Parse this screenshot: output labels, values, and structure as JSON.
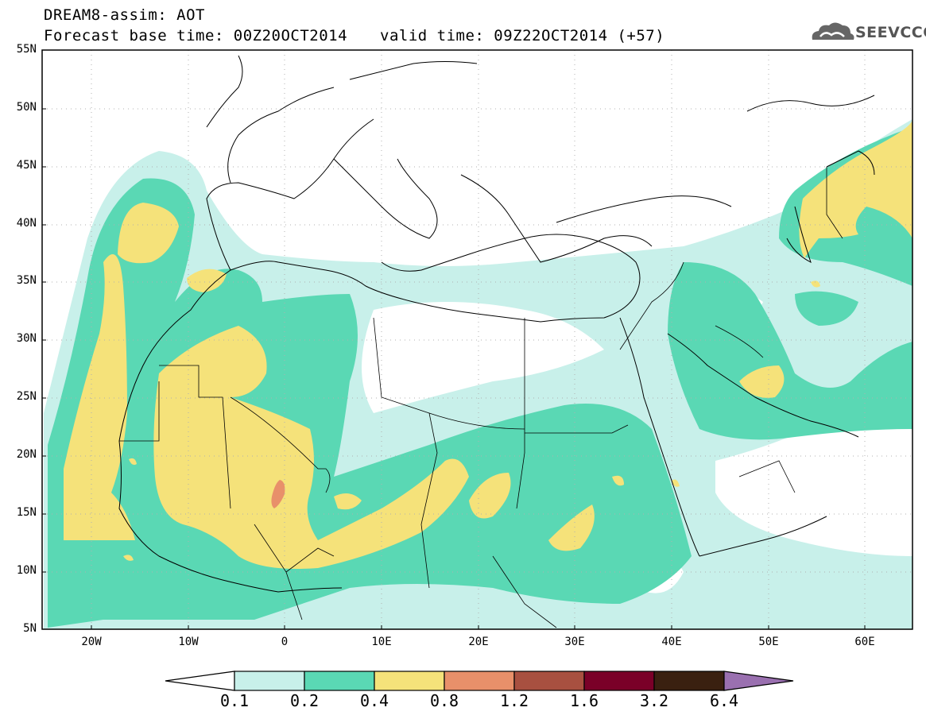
{
  "title": {
    "line1": "DREAM8-assim: AOT",
    "base": "Forecast base time: 00Z20OCT2014",
    "valid": "valid time: 09Z22OCT2014 (+57)"
  },
  "logo": {
    "text": "SEEVCCC",
    "icon": "cloud-icon"
  },
  "map": {
    "lat_labels": [
      "55N",
      "50N",
      "45N",
      "40N",
      "35N",
      "30N",
      "25N",
      "20N",
      "15N",
      "10N",
      "5N"
    ],
    "lat_values": [
      55,
      50,
      45,
      40,
      35,
      30,
      25,
      20,
      15,
      10,
      5
    ],
    "lon_labels": [
      "20W",
      "10W",
      "0",
      "10E",
      "20E",
      "30E",
      "40E",
      "50E",
      "60E"
    ],
    "lon_values": [
      -20,
      -10,
      0,
      10,
      20,
      30,
      40,
      50,
      60
    ],
    "extent": {
      "lon_min": -25,
      "lon_max": 65,
      "lat_min": 5,
      "lat_max": 55
    },
    "grid": "dotted"
  },
  "colorbar": {
    "labels": [
      "0.1",
      "0.2",
      "0.4",
      "0.8",
      "1.2",
      "1.6",
      "3.2",
      "6.4"
    ],
    "colors": [
      "#ffffff",
      "#c8f0ea",
      "#5ad8b4",
      "#f5e27a",
      "#e8906a",
      "#a85040",
      "#7a0028",
      "#3a2010",
      "#9a70b0"
    ]
  }
}
